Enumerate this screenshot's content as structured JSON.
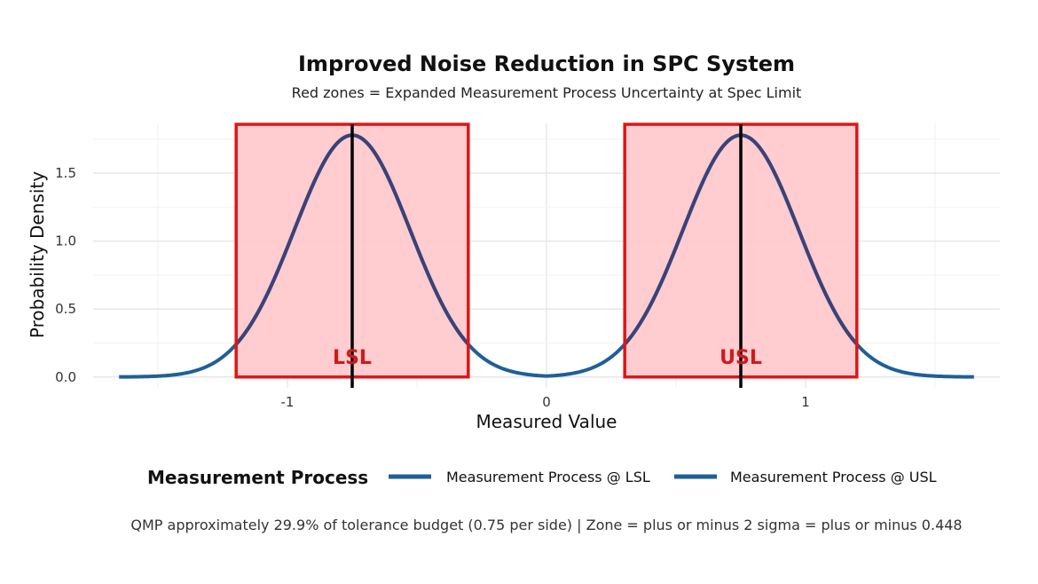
{
  "chart_data": {
    "type": "line",
    "title": "Improved Noise Reduction in SPC System",
    "subtitle": "Red zones = Expanded Measurement Process Uncertainty at Spec Limit",
    "xlabel": "Measured Value",
    "ylabel": "Probability Density",
    "xlim": [
      -1.75,
      1.75
    ],
    "ylim": [
      -0.08,
      1.88
    ],
    "x_ticks": [
      -1,
      0,
      1
    ],
    "x_tick_labels": [
      "-1",
      "0",
      "1"
    ],
    "y_ticks": [
      0.0,
      0.5,
      1.0,
      1.5
    ],
    "y_tick_labels": [
      "0.0",
      "0.5",
      "1.0",
      "1.5"
    ],
    "grid": true,
    "legend_title": "Measurement Process",
    "legend_position": "bottom",
    "series": [
      {
        "name": "Measurement Process @ LSL",
        "distribution": "normal",
        "mean": -0.75,
        "sd": 0.224,
        "peak": 1.78,
        "x_range": [
          -1.65,
          0.0
        ],
        "color": "#1f5f96"
      },
      {
        "name": "Measurement Process @ USL",
        "distribution": "normal",
        "mean": 0.75,
        "sd": 0.224,
        "peak": 1.78,
        "x_range": [
          0.0,
          1.65
        ],
        "color": "#1f5f96"
      }
    ],
    "zones": [
      {
        "label": "LSL",
        "x_min": -1.198,
        "x_max": -0.302,
        "y_max": 1.86,
        "center": -0.75,
        "label_y": 0.15
      },
      {
        "label": "USL",
        "x_min": 0.302,
        "x_max": 1.198,
        "y_max": 1.86,
        "center": 0.75,
        "label_y": 0.15
      }
    ],
    "zone_color": "#e01515",
    "zone_fill": "#ffc9cc",
    "caption": "QMP approximately 29.9% of tolerance budget (0.75 per side) | Zone = plus or minus 2 sigma = plus or minus 0.448"
  }
}
